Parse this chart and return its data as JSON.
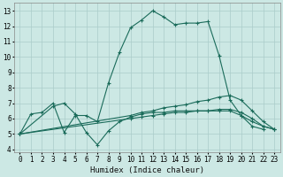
{
  "title": "",
  "xlabel": "Humidex (Indice chaleur)",
  "bg_color": "#cce8e4",
  "grid_color": "#aaccca",
  "line_color": "#1a6b5a",
  "xlim": [
    -0.5,
    23.5
  ],
  "ylim": [
    3.8,
    13.5
  ],
  "xticks": [
    0,
    1,
    2,
    3,
    4,
    5,
    6,
    7,
    8,
    9,
    10,
    11,
    12,
    13,
    14,
    15,
    16,
    17,
    18,
    19,
    20,
    21,
    22,
    23
  ],
  "yticks": [
    4,
    5,
    6,
    7,
    8,
    9,
    10,
    11,
    12,
    13
  ],
  "xlabel_fontsize": 6.5,
  "tick_fontsize": 5.5,
  "lines": [
    {
      "x": [
        0,
        1,
        2,
        3,
        4,
        5,
        6,
        7,
        8,
        9,
        10,
        11,
        12,
        13,
        14,
        15,
        16,
        17,
        18,
        19,
        20,
        21,
        22
      ],
      "y": [
        5.0,
        6.3,
        6.4,
        7.0,
        5.1,
        6.2,
        6.2,
        5.8,
        8.3,
        10.3,
        11.9,
        12.4,
        13.0,
        12.6,
        12.1,
        12.2,
        12.2,
        12.3,
        10.1,
        7.2,
        6.2,
        5.5,
        5.3
      ]
    },
    {
      "x": [
        0,
        3,
        4,
        5,
        6,
        7,
        8,
        9,
        10,
        11,
        12,
        13,
        14,
        15,
        16,
        17,
        18,
        19,
        20,
        21,
        22,
        23
      ],
      "y": [
        5.0,
        6.8,
        7.0,
        6.3,
        5.1,
        4.3,
        5.2,
        5.8,
        6.1,
        6.3,
        6.4,
        6.4,
        6.5,
        6.5,
        6.5,
        6.5,
        6.5,
        6.5,
        6.2,
        5.8,
        5.5,
        5.3
      ]
    },
    {
      "x": [
        0,
        10,
        11,
        12,
        13,
        14,
        15,
        16,
        17,
        18,
        19,
        20,
        21,
        22,
        23
      ],
      "y": [
        5.0,
        6.2,
        6.4,
        6.5,
        6.7,
        6.8,
        6.9,
        7.1,
        7.2,
        7.4,
        7.5,
        7.2,
        6.5,
        5.8,
        5.3
      ]
    },
    {
      "x": [
        0,
        10,
        11,
        12,
        13,
        14,
        15,
        16,
        17,
        18,
        19,
        20,
        21,
        22,
        23
      ],
      "y": [
        5.0,
        6.0,
        6.1,
        6.2,
        6.3,
        6.4,
        6.4,
        6.5,
        6.5,
        6.6,
        6.6,
        6.4,
        6.0,
        5.5,
        5.3
      ]
    }
  ]
}
